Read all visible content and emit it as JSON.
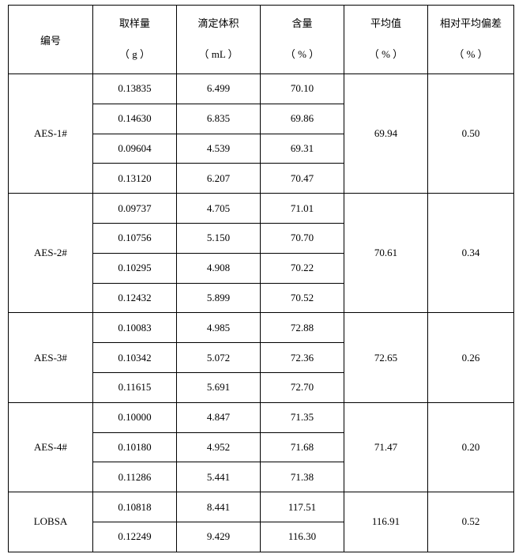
{
  "headers": [
    {
      "label": "编号",
      "unit": ""
    },
    {
      "label": "取样量",
      "unit": "（ g ）"
    },
    {
      "label": "滴定体积",
      "unit": "（ mL ）"
    },
    {
      "label": "含量",
      "unit": "（ % ）"
    },
    {
      "label": "平均值",
      "unit": "（ % ）"
    },
    {
      "label": "相对平均偏差",
      "unit": "（ % ）"
    }
  ],
  "groups": [
    {
      "id": "AES-1#",
      "average": "69.94",
      "rel_dev": "0.50",
      "rows": [
        {
          "mass": "0.13835",
          "volume": "6.499",
          "content": "70.10"
        },
        {
          "mass": "0.14630",
          "volume": "6.835",
          "content": "69.86"
        },
        {
          "mass": "0.09604",
          "volume": "4.539",
          "content": "69.31"
        },
        {
          "mass": "0.13120",
          "volume": "6.207",
          "content": "70.47"
        }
      ]
    },
    {
      "id": "AES-2#",
      "average": "70.61",
      "rel_dev": "0.34",
      "rows": [
        {
          "mass": "0.09737",
          "volume": "4.705",
          "content": "71.01"
        },
        {
          "mass": "0.10756",
          "volume": "5.150",
          "content": "70.70"
        },
        {
          "mass": "0.10295",
          "volume": "4.908",
          "content": "70.22"
        },
        {
          "mass": "0.12432",
          "volume": "5.899",
          "content": "70.52"
        }
      ]
    },
    {
      "id": "AES-3#",
      "average": "72.65",
      "rel_dev": "0.26",
      "rows": [
        {
          "mass": "0.10083",
          "volume": "4.985",
          "content": "72.88"
        },
        {
          "mass": "0.10342",
          "volume": "5.072",
          "content": "72.36"
        },
        {
          "mass": "0.11615",
          "volume": "5.691",
          "content": "72.70"
        }
      ]
    },
    {
      "id": "AES-4#",
      "average": "71.47",
      "rel_dev": "0.20",
      "rows": [
        {
          "mass": "0.10000",
          "volume": "4.847",
          "content": "71.35"
        },
        {
          "mass": "0.10180",
          "volume": "4.952",
          "content": "71.68"
        },
        {
          "mass": "0.11286",
          "volume": "5.441",
          "content": "71.38"
        }
      ]
    },
    {
      "id": "LOBSA",
      "average": "116.91",
      "rel_dev": "0.52",
      "rows": [
        {
          "mass": "0.10818",
          "volume": "8.441",
          "content": "117.51"
        },
        {
          "mass": "0.12249",
          "volume": "9.429",
          "content": "116.30"
        }
      ]
    }
  ]
}
